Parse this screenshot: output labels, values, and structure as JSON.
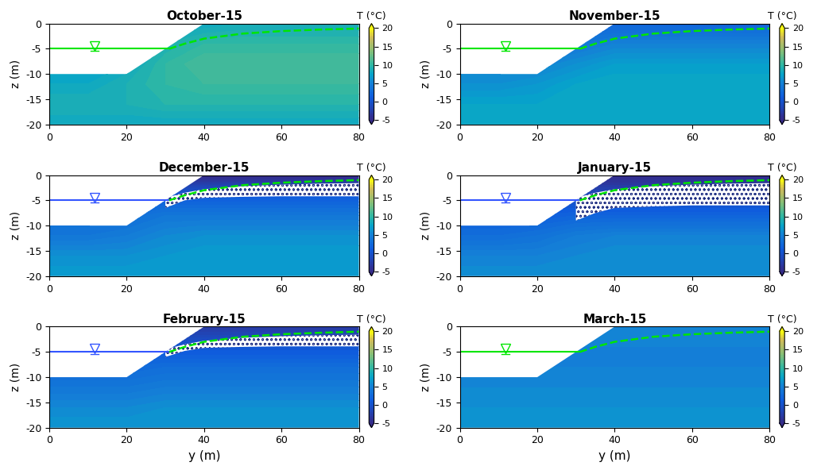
{
  "chart_data": [
    {
      "type": "contour",
      "title": "October-15",
      "y_label": "z (m)",
      "xlim": [
        0,
        80
      ],
      "ylim": [
        -20,
        0
      ],
      "xticks": [
        0,
        20,
        40,
        60,
        80
      ],
      "yticks": [
        -20,
        -15,
        -10,
        -5,
        0
      ],
      "ground_surface": {
        "y": [
          0,
          20,
          40,
          80
        ],
        "z": [
          -10,
          -10,
          0,
          0
        ]
      },
      "grid_y": [
        0,
        10,
        20,
        30,
        40,
        50,
        60,
        70,
        80
      ],
      "grid_z": [
        -20,
        -16,
        -12,
        -8,
        -4,
        0
      ],
      "cells": [
        [
          8,
          8,
          8,
          8,
          8,
          8,
          8,
          8,
          8
        ],
        [
          9,
          9,
          9,
          9.5,
          9.5,
          9.5,
          9.5,
          9.5,
          9.5
        ],
        [
          8,
          8,
          9,
          10,
          10.5,
          10.5,
          10.5,
          10.5,
          10.5
        ],
        [
          8,
          8,
          8,
          10,
          11,
          11,
          11,
          11,
          11
        ],
        [
          8,
          8,
          8,
          9,
          10,
          10,
          10,
          10,
          10
        ],
        [
          8,
          8,
          8,
          8,
          8,
          8.5,
          8.5,
          8.5,
          8.5
        ]
      ],
      "colorbar": {
        "label": "T (°C)",
        "range": [
          -5,
          20
        ],
        "ticks": [
          -5,
          0,
          5,
          10,
          15,
          20
        ]
      },
      "water_level": {
        "y": [
          0,
          31
        ],
        "z": [
          -5,
          -5
        ],
        "color": "#00e600"
      },
      "phreatic_line": {
        "y": [
          31,
          35,
          40,
          50,
          60,
          70,
          80
        ],
        "z": [
          -5,
          -4,
          -3,
          -2,
          -1.5,
          -1.2,
          -1
        ],
        "color": "#00e600",
        "line_style": "dashed"
      }
    },
    {
      "type": "contour",
      "title": "November-15",
      "y_label": "z (m)",
      "xlim": [
        0,
        80
      ],
      "ylim": [
        -20,
        0
      ],
      "xticks": [
        0,
        20,
        40,
        60,
        80
      ],
      "yticks": [
        -20,
        -15,
        -10,
        -5,
        0
      ],
      "ground_surface": {
        "y": [
          0,
          20,
          40,
          80
        ],
        "z": [
          -10,
          -10,
          0,
          0
        ]
      },
      "grid_y": [
        0,
        10,
        20,
        30,
        40,
        50,
        60,
        70,
        80
      ],
      "grid_z": [
        -20,
        -16,
        -12,
        -8,
        -4,
        0
      ],
      "cells": [
        [
          8,
          8,
          8,
          8,
          8,
          8,
          8,
          8,
          8
        ],
        [
          7.5,
          7.5,
          7.5,
          8,
          8,
          8,
          8,
          8,
          8
        ],
        [
          6,
          6,
          6.5,
          7.5,
          8,
          8,
          8,
          8,
          8
        ],
        [
          5,
          5,
          5,
          6,
          7,
          7,
          7,
          7,
          7
        ],
        [
          4,
          4,
          4,
          4,
          5,
          5,
          5,
          5,
          5
        ],
        [
          2,
          2,
          2,
          2,
          2,
          2,
          2,
          2,
          2
        ]
      ],
      "colorbar": {
        "label": "T (°C)",
        "range": [
          -5,
          20
        ],
        "ticks": [
          -5,
          0,
          5,
          10,
          15,
          20
        ]
      },
      "water_level": {
        "y": [
          0,
          31
        ],
        "z": [
          -5,
          -5
        ],
        "color": "#00e600"
      },
      "phreatic_line": {
        "y": [
          31,
          35,
          40,
          50,
          60,
          70,
          80
        ],
        "z": [
          -5,
          -4,
          -3,
          -2,
          -1.5,
          -1.2,
          -1
        ],
        "color": "#00e600",
        "line_style": "dashed"
      }
    },
    {
      "type": "contour",
      "title": "December-15",
      "y_label": "z (m)",
      "xlim": [
        0,
        80
      ],
      "ylim": [
        -20,
        0
      ],
      "xticks": [
        0,
        20,
        40,
        60,
        80
      ],
      "yticks": [
        -20,
        -15,
        -10,
        -5,
        0
      ],
      "ground_surface": {
        "y": [
          0,
          20,
          40,
          80
        ],
        "z": [
          -10,
          -10,
          0,
          0
        ]
      },
      "grid_y": [
        0,
        10,
        20,
        30,
        40,
        50,
        60,
        70,
        80
      ],
      "grid_z": [
        -20,
        -16,
        -12,
        -8,
        -4,
        0
      ],
      "cells": [
        [
          7,
          7,
          7,
          7,
          7,
          7,
          7,
          7,
          7
        ],
        [
          6,
          6,
          6,
          6.5,
          7,
          7,
          7,
          7,
          7
        ],
        [
          4,
          4,
          4.5,
          5.5,
          6,
          6,
          6,
          6,
          6
        ],
        [
          3,
          3,
          3,
          4,
          4,
          4,
          4,
          4,
          4
        ],
        [
          1,
          1,
          1,
          1,
          1,
          1,
          1,
          1,
          1
        ],
        [
          -5,
          -5,
          -5,
          -5,
          -5,
          -5,
          -5,
          -5,
          -5
        ]
      ],
      "colorbar": {
        "label": "T (°C)",
        "range": [
          -5,
          20
        ],
        "ticks": [
          -5,
          0,
          5,
          10,
          15,
          20
        ]
      },
      "water_level": {
        "y": [
          0,
          31
        ],
        "z": [
          -5,
          -5
        ],
        "color": "#3355ff"
      },
      "phreatic_line": {
        "y": [
          31,
          35,
          40,
          50,
          60,
          70,
          80
        ],
        "z": [
          -5,
          -4,
          -3,
          -2,
          -1.5,
          -1.2,
          -1
        ],
        "color": "#00e600",
        "line_style": "dashed"
      },
      "frozen_zone": {
        "y": [
          30,
          35,
          40,
          50,
          60,
          70,
          80
        ],
        "top": [
          -4.5,
          -3.5,
          -2.8,
          -2.2,
          -1.9,
          -1.7,
          -1.6
        ],
        "bottom": [
          -6.5,
          -5,
          -4.5,
          -4.3,
          -4.2,
          -4.2,
          -4.2
        ]
      }
    },
    {
      "type": "contour",
      "title": "January-15",
      "y_label": "z (m)",
      "xlim": [
        0,
        80
      ],
      "ylim": [
        -20,
        0
      ],
      "xticks": [
        0,
        20,
        40,
        60,
        80
      ],
      "yticks": [
        -20,
        -15,
        -10,
        -5,
        0
      ],
      "ground_surface": {
        "y": [
          0,
          20,
          40,
          80
        ],
        "z": [
          -10,
          -10,
          0,
          0
        ]
      },
      "grid_y": [
        0,
        10,
        20,
        30,
        40,
        50,
        60,
        70,
        80
      ],
      "grid_z": [
        -20,
        -16,
        -12,
        -8,
        -4,
        0
      ],
      "cells": [
        [
          6,
          6,
          6,
          6,
          6,
          6,
          6,
          6,
          6
        ],
        [
          5,
          5,
          5,
          5.5,
          6,
          6,
          6,
          6,
          6
        ],
        [
          3,
          3,
          3.5,
          4.5,
          5,
          5,
          5,
          5,
          5
        ],
        [
          1.5,
          1.5,
          1.5,
          2,
          2,
          2,
          2,
          2,
          2
        ],
        [
          0,
          0,
          0,
          -1,
          -1,
          -1,
          -1,
          -1,
          -1
        ],
        [
          -5,
          -5,
          -5,
          -5,
          -5,
          -5,
          -5,
          -5,
          -5
        ]
      ],
      "colorbar": {
        "label": "T (°C)",
        "range": [
          -5,
          20
        ],
        "ticks": [
          -5,
          0,
          5,
          10,
          15,
          20
        ]
      },
      "water_level": {
        "y": [
          0,
          31
        ],
        "z": [
          -5,
          -5
        ],
        "color": "#3355ff"
      },
      "phreatic_line": {
        "y": [
          31,
          35,
          40,
          50,
          60,
          70,
          80
        ],
        "z": [
          -5,
          -4,
          -3,
          -2,
          -1.5,
          -1.2,
          -1
        ],
        "color": "#00e600",
        "line_style": "dashed"
      },
      "frozen_zone": {
        "y": [
          30,
          35,
          40,
          50,
          60,
          70,
          80
        ],
        "top": [
          -4.5,
          -3.5,
          -2.8,
          -2.2,
          -1.9,
          -1.7,
          -1.6
        ],
        "bottom": [
          -9,
          -7.5,
          -6.5,
          -6.2,
          -6,
          -6,
          -6
        ]
      }
    },
    {
      "type": "contour",
      "title": "February-15",
      "y_label": "z (m)",
      "x_label": "y (m)",
      "xlim": [
        0,
        80
      ],
      "ylim": [
        -20,
        0
      ],
      "xticks": [
        0,
        20,
        40,
        60,
        80
      ],
      "yticks": [
        -20,
        -15,
        -10,
        -5,
        0
      ],
      "ground_surface": {
        "y": [
          0,
          20,
          40,
          80
        ],
        "z": [
          -10,
          -10,
          0,
          0
        ]
      },
      "grid_y": [
        0,
        10,
        20,
        30,
        40,
        50,
        60,
        70,
        80
      ],
      "grid_z": [
        -20,
        -16,
        -12,
        -8,
        -4,
        0
      ],
      "cells": [
        [
          6.5,
          6.5,
          6.5,
          6.5,
          6.5,
          6.5,
          6.5,
          6.5,
          6.5
        ],
        [
          5.5,
          5.5,
          5.5,
          6,
          6,
          6,
          6,
          6,
          6
        ],
        [
          4,
          4,
          4,
          4.5,
          4.5,
          4.5,
          4.5,
          4.5,
          4.5
        ],
        [
          2.5,
          2.5,
          2.5,
          3,
          3,
          3,
          3,
          3,
          3
        ],
        [
          1,
          1,
          1,
          0.5,
          0.5,
          0.5,
          0.5,
          0.5,
          0.5
        ],
        [
          -3,
          -3,
          -3,
          -3,
          -3,
          -3,
          -3,
          -3,
          -3
        ]
      ],
      "colorbar": {
        "label": "T (°C)",
        "range": [
          -5,
          20
        ],
        "ticks": [
          -5,
          0,
          5,
          10,
          15,
          20
        ]
      },
      "water_level": {
        "y": [
          0,
          31
        ],
        "z": [
          -5,
          -5
        ],
        "color": "#3355ff"
      },
      "phreatic_line": {
        "y": [
          31,
          35,
          40,
          50,
          60,
          70,
          80
        ],
        "z": [
          -5,
          -4,
          -3,
          -2,
          -1.5,
          -1.2,
          -1
        ],
        "color": "#00e600",
        "line_style": "dashed"
      },
      "frozen_zone": {
        "y": [
          30,
          35,
          40,
          50,
          60,
          70,
          80
        ],
        "top": [
          -4.5,
          -3.5,
          -2.8,
          -2.2,
          -1.9,
          -1.7,
          -1.6
        ],
        "bottom": [
          -6,
          -4.8,
          -4.2,
          -4,
          -3.9,
          -3.9,
          -3.9
        ]
      }
    },
    {
      "type": "contour",
      "title": "March-15",
      "y_label": "z (m)",
      "x_label": "y (m)",
      "xlim": [
        0,
        80
      ],
      "ylim": [
        -20,
        0
      ],
      "xticks": [
        0,
        20,
        40,
        60,
        80
      ],
      "yticks": [
        -20,
        -15,
        -10,
        -5,
        0
      ],
      "ground_surface": {
        "y": [
          0,
          20,
          40,
          80
        ],
        "z": [
          -10,
          -10,
          0,
          0
        ]
      },
      "grid_y": [
        0,
        10,
        20,
        30,
        40,
        50,
        60,
        70,
        80
      ],
      "grid_z": [
        -20,
        -16,
        -12,
        -8,
        -4,
        0
      ],
      "cells": [
        [
          6.5,
          6.5,
          6.5,
          6.5,
          6.5,
          6.5,
          6.5,
          6.5,
          6.5
        ],
        [
          6,
          6,
          6,
          6,
          6,
          6,
          6,
          6,
          6
        ],
        [
          5.5,
          5.5,
          5.5,
          5.5,
          5.5,
          5.5,
          5.5,
          5.5,
          5.5
        ],
        [
          5,
          5,
          5,
          5,
          5,
          5,
          5,
          5,
          5
        ],
        [
          5,
          5,
          5,
          5,
          5,
          5,
          5,
          5,
          5
        ],
        [
          5.5,
          5.5,
          5.5,
          5.5,
          5.5,
          5.5,
          5.5,
          5.5,
          5.5
        ]
      ],
      "colorbar": {
        "label": "T (°C)",
        "range": [
          -5,
          20
        ],
        "ticks": [
          -5,
          0,
          5,
          10,
          15,
          20
        ]
      },
      "water_level": {
        "y": [
          0,
          31
        ],
        "z": [
          -5,
          -5
        ],
        "color": "#00e600"
      },
      "phreatic_line": {
        "y": [
          31,
          35,
          40,
          50,
          60,
          70,
          80
        ],
        "z": [
          -5,
          -4,
          -3,
          -2,
          -1.5,
          -1.2,
          -1
        ],
        "color": "#00e600",
        "line_style": "dashed"
      }
    }
  ]
}
